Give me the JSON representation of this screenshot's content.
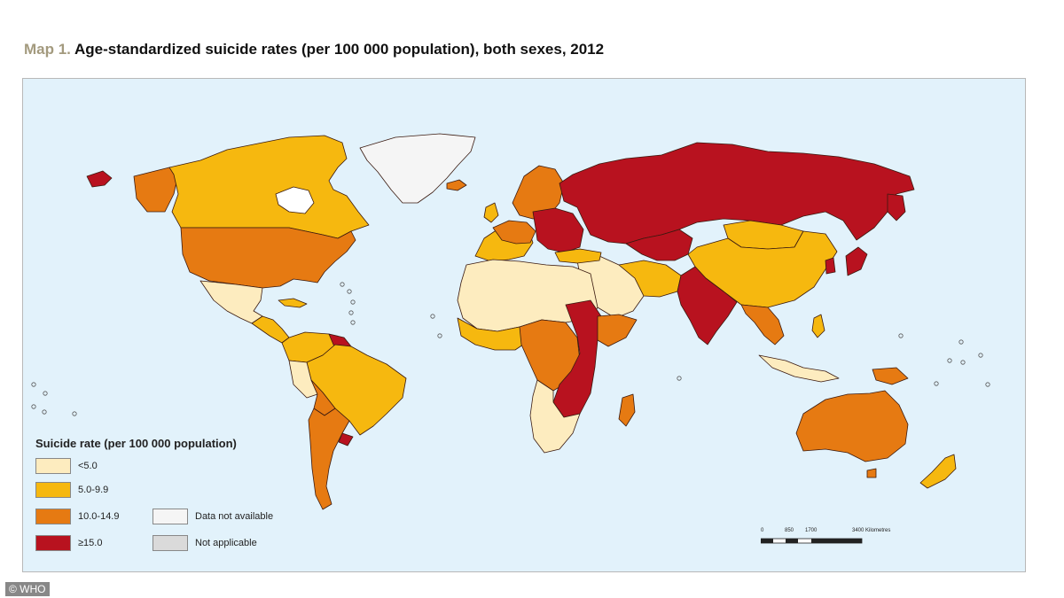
{
  "title": {
    "prefix": "Map 1.",
    "text": "Age-standardized suicide rates (per 100 000 population), both sexes, 2012"
  },
  "legend": {
    "title": "Suicide rate (per 100 000 population)",
    "items": [
      {
        "label": "<5.0",
        "color": "#fdecbf"
      },
      {
        "label": "5.0-9.9",
        "color": "#f6b80f"
      },
      {
        "label": "10.0-14.9",
        "color": "#e67a12"
      },
      {
        "label": "≥15.0",
        "color": "#b8121f"
      },
      {
        "label": "Data not available",
        "color": "#f5f5f5"
      },
      {
        "label": "Not applicable",
        "color": "#dadada"
      }
    ]
  },
  "scale_bar": {
    "labels": [
      "0",
      "850",
      "1700",
      "3400 Kilometres"
    ]
  },
  "colors": {
    "ocean": "#e2f2fb",
    "border": "#3a1a10",
    "very_low": "#fdecbf",
    "low": "#f6b80f",
    "medium": "#e67a12",
    "high": "#b8121f",
    "no_data": "#f5f5f5",
    "not_applicable": "#dadada"
  },
  "credit": "© WHO"
}
